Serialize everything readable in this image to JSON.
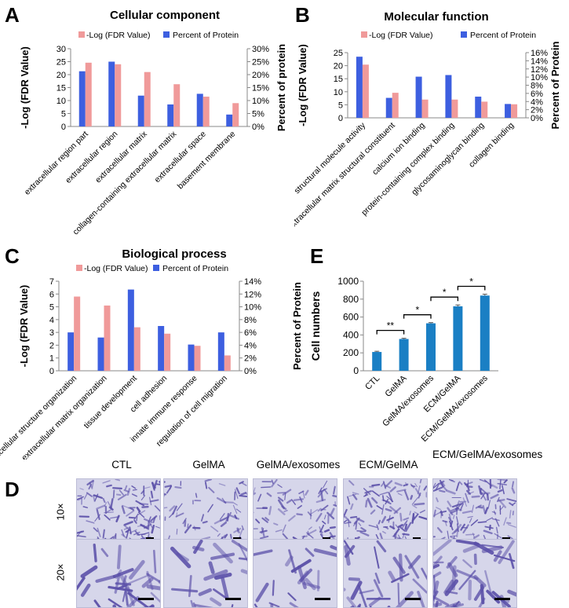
{
  "panels": {
    "a": "A",
    "b": "B",
    "c": "C",
    "d": "D",
    "e": "E"
  },
  "chart_data": [
    {
      "id": "A",
      "type": "bar",
      "title": "Cellular component",
      "ylabel": "-Log (FDR Value)",
      "y2label": "Percent of protein",
      "ylim": [
        0,
        30
      ],
      "y_ticks": [
        "0",
        "5",
        "10",
        "15",
        "20",
        "25",
        "30"
      ],
      "y2lim": [
        0,
        30
      ],
      "y2_ticks": [
        "0%",
        "5%",
        "10%",
        "15%",
        "20%",
        "25%",
        "30%"
      ],
      "legend": [
        "-Log (FDR Value)",
        "Percent of Protein"
      ],
      "categories": [
        "extracellular region part",
        "extracellular region",
        "extracellular matrix",
        "collagen-containing extracellular matrix",
        "extracellular space",
        "basement membrane"
      ],
      "series": [
        {
          "name": "Percent of Protein",
          "axis": "right",
          "color": "#3d5fe0",
          "values": [
            21.3,
            25.0,
            11.9,
            8.5,
            12.6,
            4.6
          ]
        },
        {
          "name": "-Log (FDR Value)",
          "axis": "left",
          "color": "#f09a9a",
          "values": [
            24.6,
            24.0,
            21.0,
            16.3,
            11.5,
            9.0
          ]
        }
      ]
    },
    {
      "id": "B",
      "type": "bar",
      "title": "Molecular function",
      "ylabel": "-Log (FDR Value)",
      "y2label": "Percent of Protein",
      "ylim": [
        0,
        25
      ],
      "y_ticks": [
        "0",
        "5",
        "10",
        "15",
        "20",
        "25"
      ],
      "y2lim": [
        0,
        16
      ],
      "y2_ticks": [
        "0%",
        "2%",
        "4%",
        "6%",
        "8%",
        "10%",
        "12%",
        "14%",
        "16%"
      ],
      "legend": [
        "-Log (FDR Value)",
        "Percent of Protein"
      ],
      "categories": [
        "structural molecule activity",
        "extracellular matrix structural constituent",
        "calcium ion binding",
        "protein-containing complex binding",
        "glycosaminoglycan binding",
        "collagen binding"
      ],
      "series": [
        {
          "name": "Percent of Protein",
          "axis": "right",
          "color": "#3d5fe0",
          "values": [
            15.0,
            4.9,
            10.1,
            10.5,
            5.2,
            3.4
          ]
        },
        {
          "name": "-Log (FDR Value)",
          "axis": "left",
          "color": "#f09a9a",
          "values": [
            20.4,
            9.6,
            7.0,
            7.0,
            6.2,
            5.2
          ]
        }
      ]
    },
    {
      "id": "C",
      "type": "bar",
      "title": "Biological process",
      "ylabel": "-Log (FDR Value)",
      "y2label": "Percent of Protein",
      "ylim": [
        0,
        7
      ],
      "y_ticks": [
        "0",
        "1",
        "2",
        "3",
        "4",
        "5",
        "6",
        "7"
      ],
      "y2lim": [
        0,
        14
      ],
      "y2_ticks": [
        "0%",
        "2%",
        "4%",
        "6%",
        "8%",
        "10%",
        "12%",
        "14%"
      ],
      "legend": [
        "-Log (FDR Value)",
        "Percent of Protein"
      ],
      "categories": [
        "extracellular structure organization",
        "extracellular matrix organization",
        "tissue development",
        "cell adhesion",
        "innate immune response",
        "regulation of cell migration"
      ],
      "series": [
        {
          "name": "Percent of Protein",
          "axis": "right",
          "color": "#3d5fe0",
          "values": [
            6.0,
            5.2,
            12.7,
            7.0,
            4.1,
            6.0
          ]
        },
        {
          "name": "-Log (FDR Value)",
          "axis": "left",
          "color": "#f09a9a",
          "values": [
            5.8,
            5.1,
            3.4,
            2.9,
            1.95,
            1.2
          ]
        }
      ]
    },
    {
      "id": "E",
      "type": "bar",
      "title": "",
      "ylabel": "Cell numbers",
      "ylim": [
        0,
        1000
      ],
      "y_ticks": [
        "0",
        "200",
        "400",
        "600",
        "800",
        "1000"
      ],
      "categories": [
        "CTL",
        "GelMA",
        "GelMA/exosomes",
        "ECM/GelMA",
        "ECM/GelMA/exosomes"
      ],
      "series": [
        {
          "color": "#1a7fc4",
          "values": [
            210,
            355,
            530,
            720,
            840
          ],
          "errors": [
            8,
            8,
            8,
            15,
            15
          ]
        }
      ],
      "significance": [
        {
          "from": 0,
          "to": 1,
          "label": "**"
        },
        {
          "from": 1,
          "to": 2,
          "label": "*"
        },
        {
          "from": 2,
          "to": 3,
          "label": "*"
        },
        {
          "from": 3,
          "to": 4,
          "label": "*"
        }
      ]
    }
  ],
  "microscopy": {
    "conditions": [
      "CTL",
      "GelMA",
      "GelMA/exosomes",
      "ECM/GelMA",
      "ECM/GelMA/exosomes"
    ],
    "magnifications": [
      "10×",
      "20×"
    ],
    "stain_color": "#5a4fa8"
  }
}
